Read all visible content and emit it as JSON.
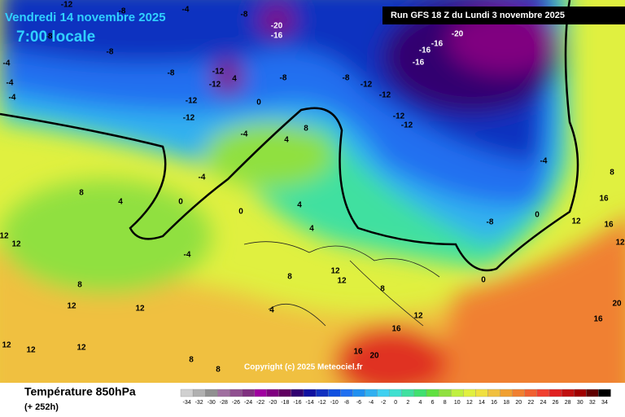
{
  "header": {
    "date": "Vendredi 14 novembre 2025",
    "time": "7:00 locale",
    "run": "Run GFS 18 Z du Lundi 3 novembre 2025"
  },
  "footer": {
    "title": "Température 850hPa",
    "lead": "(+ 252h)",
    "copyright": "Copyright (c) 2025 Meteociel.fr"
  },
  "scale": {
    "values": [
      -34,
      -32,
      -30,
      -28,
      -26,
      -24,
      -22,
      -20,
      -18,
      -16,
      -14,
      -12,
      -10,
      -8,
      -6,
      -4,
      -2,
      0,
      2,
      4,
      6,
      8,
      10,
      12,
      14,
      16,
      18,
      20,
      22,
      24,
      26,
      28,
      30,
      32,
      34
    ],
    "colors": [
      "#d0d0d0",
      "#b0b0b0",
      "#909090",
      "#a070a0",
      "#905090",
      "#803080",
      "#a000a0",
      "#800080",
      "#600060",
      "#300070",
      "#1010a0",
      "#1030c0",
      "#1050e0",
      "#2070f0",
      "#2090f0",
      "#30b0f0",
      "#40d0f0",
      "#40e0d0",
      "#40e0a0",
      "#40e070",
      "#60e040",
      "#90e040",
      "#c0f040",
      "#e0f040",
      "#f0e040",
      "#f0c040",
      "#f0a030",
      "#f08030",
      "#f06030",
      "#f04030",
      "#e02020",
      "#c01010",
      "#a00000",
      "#600000",
      "#000000"
    ]
  },
  "map_labels": [
    -12,
    -8,
    -8,
    -4,
    -8,
    -8,
    -12,
    -12,
    -4,
    -4,
    -8,
    -16,
    -20,
    -12,
    -8,
    -8,
    -12,
    -12,
    -12,
    -12,
    -16,
    -16,
    -16,
    -20,
    -4,
    -8,
    0,
    12,
    16,
    16,
    12,
    20,
    16,
    8,
    -4,
    0,
    0,
    4,
    8,
    12,
    12,
    8,
    12,
    12,
    12,
    12,
    12,
    8,
    8,
    -4,
    4,
    8,
    12,
    12,
    8,
    12,
    16,
    16,
    20,
    4,
    4,
    0,
    -4,
    4,
    8,
    0,
    -4,
    -12,
    4
  ]
}
